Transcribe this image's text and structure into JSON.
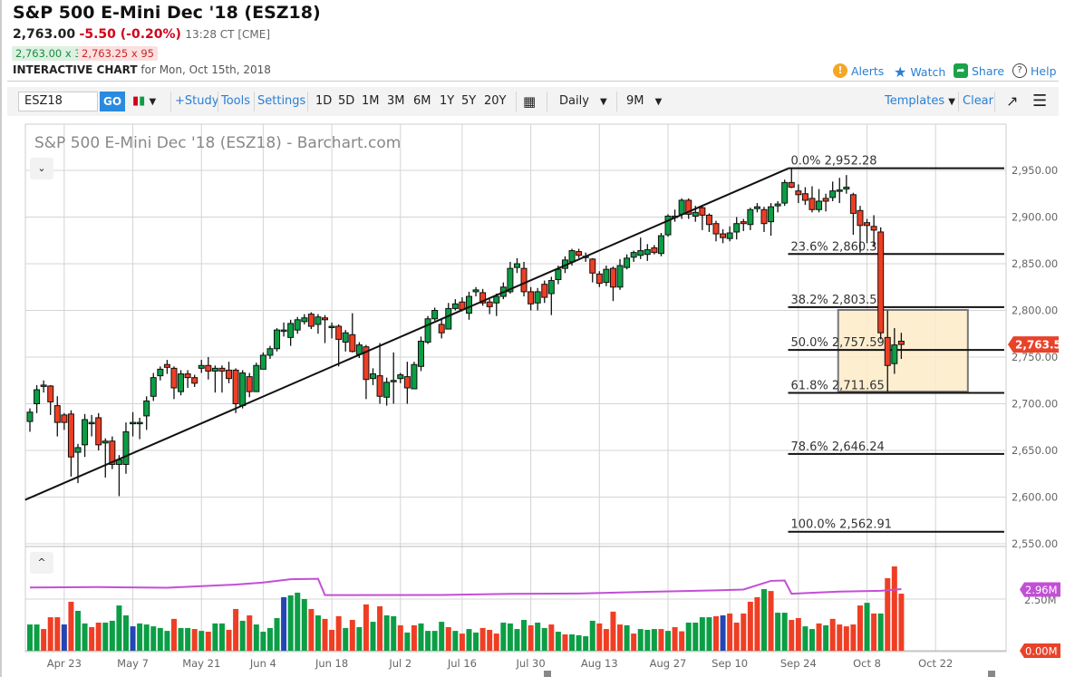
{
  "header": {
    "title": "S&P 500 E-Mini Dec '18 (ESZ18)",
    "last": "2,763.00",
    "change": "-5.50 (-0.20%)",
    "time": "13:28 CT [CME]",
    "bid": "2,763.00 x 3",
    "ask": "2,763.25 x 95",
    "interactive_label": "INTERACTIVE CHART",
    "interactive_date": "for Mon, Oct 15th, 2018"
  },
  "links": {
    "alerts": "Alerts",
    "watch": "Watch",
    "share": "Share",
    "help": "Help"
  },
  "toolbar": {
    "symbol": "ESZ18",
    "go": "GO",
    "study": "+Study",
    "tools": "Tools",
    "settings": "Settings",
    "periods": [
      "1D",
      "5D",
      "1M",
      "3M",
      "6M",
      "1Y",
      "5Y",
      "20Y"
    ],
    "interval": "Daily",
    "range": "9M",
    "templates": "Templates",
    "clear": "Clear"
  },
  "colors": {
    "up": "#0b9e45",
    "down": "#ef3e24",
    "blue_vol": "#2446b4",
    "ma": "#c34fd6",
    "accent": "#2a7fd4",
    "fib_box": "#fdebc8"
  },
  "chart_data": {
    "type": "candlestick",
    "title": "S&P 500 E-Mini Dec '18 (ESZ18) - Barchart.com",
    "ylim": [
      2550,
      2975
    ],
    "yticks": [
      "2,950.00",
      "2,900.00",
      "2,850.00",
      "2,800.00",
      "2,750.00",
      "2,700.00",
      "2,650.00",
      "2,600.00",
      "2,550.00"
    ],
    "ytick_values": [
      2950,
      2900,
      2850,
      2800,
      2750,
      2700,
      2650,
      2600,
      2550
    ],
    "xticks": [
      {
        "label": "Apr 23",
        "bar": 5
      },
      {
        "label": "May 7",
        "bar": 15
      },
      {
        "label": "May 21",
        "bar": 25
      },
      {
        "label": "Jun 4",
        "bar": 34
      },
      {
        "label": "Jun 18",
        "bar": 44
      },
      {
        "label": "Jul 2",
        "bar": 54
      },
      {
        "label": "Jul 16",
        "bar": 63
      },
      {
        "label": "Jul 30",
        "bar": 73
      },
      {
        "label": "Aug 13",
        "bar": 83
      },
      {
        "label": "Aug 27",
        "bar": 93
      },
      {
        "label": "Sep 10",
        "bar": 102
      },
      {
        "label": "Sep 24",
        "bar": 112
      },
      {
        "label": "Oct 8",
        "bar": 122
      },
      {
        "label": "Oct 22",
        "bar": 132
      }
    ],
    "last_price_label": "2,763.50",
    "last_price": 2763.5,
    "ohlc": [
      [
        2681,
        2695,
        2670,
        2691
      ],
      [
        2700,
        2720,
        2690,
        2715
      ],
      [
        2719,
        2725,
        2712,
        2720
      ],
      [
        2719,
        2720,
        2688,
        2702
      ],
      [
        2698,
        2708,
        2665,
        2680
      ],
      [
        2688,
        2690,
        2672,
        2680
      ],
      [
        2689,
        2693,
        2622,
        2643
      ],
      [
        2648,
        2657,
        2615,
        2653
      ],
      [
        2656,
        2689,
        2643,
        2683
      ],
      [
        2679,
        2688,
        2665,
        2680
      ],
      [
        2685,
        2690,
        2650,
        2656
      ],
      [
        2658,
        2663,
        2621,
        2660
      ],
      [
        2660,
        2665,
        2630,
        2635
      ],
      [
        2635,
        2645,
        2601,
        2640
      ],
      [
        2635,
        2680,
        2625,
        2670
      ],
      [
        2679,
        2691,
        2665,
        2680
      ],
      [
        2679,
        2685,
        2662,
        2680
      ],
      [
        2687,
        2708,
        2672,
        2703
      ],
      [
        2708,
        2733,
        2703,
        2728
      ],
      [
        2730,
        2740,
        2725,
        2737
      ],
      [
        2742,
        2747,
        2732,
        2739
      ],
      [
        2738,
        2740,
        2705,
        2717
      ],
      [
        2713,
        2736,
        2709,
        2732
      ],
      [
        2732,
        2736,
        2717,
        2728
      ],
      [
        2728,
        2731,
        2718,
        2722
      ],
      [
        2738,
        2747,
        2733,
        2741
      ],
      [
        2741,
        2750,
        2726,
        2735
      ],
      [
        2735,
        2741,
        2712,
        2738
      ],
      [
        2738,
        2741,
        2712,
        2735
      ],
      [
        2736,
        2745,
        2722,
        2727
      ],
      [
        2736,
        2738,
        2690,
        2700
      ],
      [
        2698,
        2736,
        2695,
        2733
      ],
      [
        2729,
        2733,
        2707,
        2713
      ],
      [
        2713,
        2744,
        2713,
        2741
      ],
      [
        2737,
        2755,
        2737,
        2752
      ],
      [
        2752,
        2762,
        2748,
        2759
      ],
      [
        2759,
        2781,
        2756,
        2779
      ],
      [
        2779,
        2787,
        2772,
        2779
      ],
      [
        2771,
        2790,
        2762,
        2786
      ],
      [
        2779,
        2793,
        2775,
        2790
      ],
      [
        2788,
        2796,
        2785,
        2792
      ],
      [
        2796,
        2798,
        2780,
        2783
      ],
      [
        2785,
        2796,
        2775,
        2793
      ],
      [
        2792,
        2795,
        2765,
        2790
      ],
      [
        2783,
        2787,
        2770,
        2783
      ],
      [
        2783,
        2785,
        2740,
        2769
      ],
      [
        2766,
        2779,
        2756,
        2776
      ],
      [
        2774,
        2797,
        2755,
        2756
      ],
      [
        2753,
        2766,
        2749,
        2763
      ],
      [
        2761,
        2763,
        2705,
        2726
      ],
      [
        2727,
        2738,
        2720,
        2732
      ],
      [
        2730,
        2765,
        2700,
        2708
      ],
      [
        2707,
        2728,
        2698,
        2723
      ],
      [
        2725,
        2755,
        2700,
        2725
      ],
      [
        2727,
        2733,
        2722,
        2731
      ],
      [
        2729,
        2745,
        2700,
        2717
      ],
      [
        2716,
        2745,
        2716,
        2742
      ],
      [
        2740,
        2772,
        2735,
        2767
      ],
      [
        2766,
        2794,
        2764,
        2791
      ],
      [
        2791,
        2803,
        2789,
        2800
      ],
      [
        2785,
        2790,
        2770,
        2776
      ],
      [
        2780,
        2808,
        2780,
        2802
      ],
      [
        2802,
        2812,
        2800,
        2807
      ],
      [
        2809,
        2814,
        2799,
        2801
      ],
      [
        2797,
        2820,
        2790,
        2815
      ],
      [
        2820,
        2825,
        2815,
        2822
      ],
      [
        2819,
        2823,
        2805,
        2808
      ],
      [
        2809,
        2812,
        2796,
        2804
      ],
      [
        2808,
        2818,
        2794,
        2815
      ],
      [
        2815,
        2830,
        2812,
        2825
      ],
      [
        2820,
        2852,
        2818,
        2845
      ],
      [
        2846,
        2856,
        2840,
        2850
      ],
      [
        2845,
        2852,
        2815,
        2820
      ],
      [
        2820,
        2825,
        2800,
        2807
      ],
      [
        2808,
        2824,
        2800,
        2820
      ],
      [
        2828,
        2832,
        2808,
        2814
      ],
      [
        2818,
        2836,
        2795,
        2832
      ],
      [
        2833,
        2848,
        2828,
        2844
      ],
      [
        2845,
        2858,
        2840,
        2854
      ],
      [
        2852,
        2866,
        2848,
        2864
      ],
      [
        2863,
        2866,
        2856,
        2859
      ],
      [
        2858,
        2862,
        2852,
        2858
      ],
      [
        2855,
        2856,
        2830,
        2840
      ],
      [
        2839,
        2842,
        2825,
        2829
      ],
      [
        2830,
        2848,
        2826,
        2844
      ],
      [
        2845,
        2847,
        2810,
        2825
      ],
      [
        2825,
        2855,
        2822,
        2848
      ],
      [
        2846,
        2860,
        2844,
        2856
      ],
      [
        2857,
        2864,
        2852,
        2862
      ],
      [
        2859,
        2878,
        2855,
        2864
      ],
      [
        2860,
        2871,
        2853,
        2865
      ],
      [
        2867,
        2870,
        2860,
        2862
      ],
      [
        2861,
        2883,
        2858,
        2880
      ],
      [
        2881,
        2903,
        2879,
        2901
      ],
      [
        2901,
        2908,
        2895,
        2901
      ],
      [
        2903,
        2920,
        2898,
        2918
      ],
      [
        2918,
        2920,
        2898,
        2903
      ],
      [
        2901,
        2912,
        2895,
        2905
      ],
      [
        2910,
        2913,
        2886,
        2902
      ],
      [
        2902,
        2904,
        2884,
        2892
      ],
      [
        2893,
        2896,
        2874,
        2882
      ],
      [
        2882,
        2887,
        2872,
        2878
      ],
      [
        2877,
        2890,
        2874,
        2883
      ],
      [
        2884,
        2900,
        2876,
        2893
      ],
      [
        2895,
        2898,
        2885,
        2893
      ],
      [
        2892,
        2910,
        2886,
        2908
      ],
      [
        2909,
        2915,
        2905,
        2911
      ],
      [
        2908,
        2911,
        2884,
        2893
      ],
      [
        2895,
        2915,
        2880,
        2911
      ],
      [
        2912,
        2917,
        2905,
        2914
      ],
      [
        2915,
        2940,
        2912,
        2937
      ],
      [
        2937,
        2952,
        2931,
        2932
      ],
      [
        2928,
        2935,
        2915,
        2924
      ],
      [
        2925,
        2932,
        2913,
        2918
      ],
      [
        2920,
        2933,
        2905,
        2908
      ],
      [
        2908,
        2930,
        2905,
        2917
      ],
      [
        2920,
        2925,
        2906,
        2917
      ],
      [
        2921,
        2938,
        2917,
        2928
      ],
      [
        2929,
        2942,
        2915,
        2929
      ],
      [
        2930,
        2945,
        2925,
        2932
      ],
      [
        2924,
        2926,
        2881,
        2904
      ],
      [
        2907,
        2912,
        2862,
        2891
      ],
      [
        2894,
        2898,
        2872,
        2891
      ],
      [
        2890,
        2902,
        2868,
        2886
      ],
      [
        2884,
        2889,
        2769,
        2776
      ],
      [
        2771,
        2800,
        2713,
        2741
      ],
      [
        2743,
        2781,
        2732,
        2763
      ],
      [
        2767,
        2776,
        2748,
        2763.5
      ]
    ],
    "trendline": [
      [
        -0.7,
        2597
      ],
      [
        110.5,
        2952
      ]
    ],
    "fibonacci": [
      {
        "label": "0.0% 2,952.28",
        "value": 2952.28
      },
      {
        "label": "23.6% 2,860.39",
        "value": 2860.39
      },
      {
        "label": "38.2% 2,803.54",
        "value": 2803.54
      },
      {
        "label": "50.0% 2,757.59",
        "value": 2757.59
      },
      {
        "label": "61.8% 2,711.65",
        "value": 2711.65
      },
      {
        "label": "78.6% 2,646.24",
        "value": 2646.24
      },
      {
        "label": "100.0% 2,562.91",
        "value": 2562.91
      }
    ],
    "fib_range_bars": [
      110.5,
      142
    ],
    "highlight_box": {
      "bars": [
        117.8,
        136.7
      ],
      "prices": [
        2713,
        2800.5
      ]
    },
    "volume": {
      "ylim": [
        0,
        4.2
      ],
      "ticks": [
        {
          "label": "2.50M",
          "value": 2.5
        }
      ],
      "base_label": "0.00M",
      "ma_label": "2.96M",
      "ma_value": 2.96,
      "values": [
        1.27,
        1.27,
        1.05,
        1.62,
        1.62,
        1.27,
        2.37,
        1.93,
        1.32,
        1.14,
        1.36,
        1.36,
        1.45,
        2.19,
        1.71,
        1.18,
        1.32,
        1.27,
        1.18,
        1.1,
        0.96,
        1.54,
        1.1,
        1.1,
        1.05,
        0.96,
        0.92,
        1.32,
        1.32,
        1.01,
        2.02,
        1.45,
        1.71,
        1.27,
        0.92,
        1.1,
        1.58,
        2.59,
        2.68,
        2.81,
        2.5,
        2.02,
        1.71,
        1.54,
        1.01,
        1.67,
        1.1,
        1.49,
        1.14,
        2.24,
        1.4,
        2.15,
        1.71,
        1.67,
        1.23,
        0.88,
        1.23,
        1.32,
        0.96,
        0.96,
        1.4,
        1.14,
        0.96,
        0.83,
        1.05,
        0.88,
        1.1,
        1.01,
        0.83,
        1.36,
        1.32,
        1.05,
        1.49,
        1.23,
        1.36,
        1.1,
        1.27,
        0.92,
        0.79,
        0.79,
        0.75,
        0.7,
        1.45,
        1.32,
        1.05,
        1.89,
        1.27,
        1.23,
        0.83,
        1.05,
        1.01,
        1.05,
        1.05,
        0.96,
        1.14,
        0.94,
        1.36,
        1.36,
        1.62,
        1.62,
        1.67,
        1.71,
        1.8,
        1.36,
        1.8,
        2.37,
        2.59,
        2.98,
        2.89,
        1.84,
        1.84,
        1.49,
        1.58,
        1.18,
        1.05,
        1.32,
        1.23,
        1.54,
        1.27,
        1.18,
        1.27,
        2.19,
        2.32,
        1.8,
        1.8,
        3.51,
        4.08,
        2.76
      ],
      "colors": "ggrrrbrggrrggggbgggggrggrgrggrrgrggggbgggrgrrrgrgrgrggrgrggggrgrggrrrggggrggrgrggggrrrrgrgggrgrrggggrbrrrrrgrggrrggrgrrrrrgrgrrrrrrrg",
      "moving_average": [
        [
          0,
          3.06
        ],
        [
          10,
          3.08
        ],
        [
          20,
          3.05
        ],
        [
          30,
          3.2
        ],
        [
          34,
          3.3
        ],
        [
          38,
          3.46
        ],
        [
          42,
          3.48
        ],
        [
          43,
          2.69
        ],
        [
          60,
          2.7
        ],
        [
          70,
          2.75
        ],
        [
          80,
          2.77
        ],
        [
          90,
          2.85
        ],
        [
          100,
          2.92
        ],
        [
          104,
          2.96
        ],
        [
          108,
          3.38
        ],
        [
          110,
          3.4
        ],
        [
          111,
          2.76
        ],
        [
          118,
          2.86
        ],
        [
          124,
          2.9
        ],
        [
          127,
          2.98
        ]
      ]
    }
  }
}
